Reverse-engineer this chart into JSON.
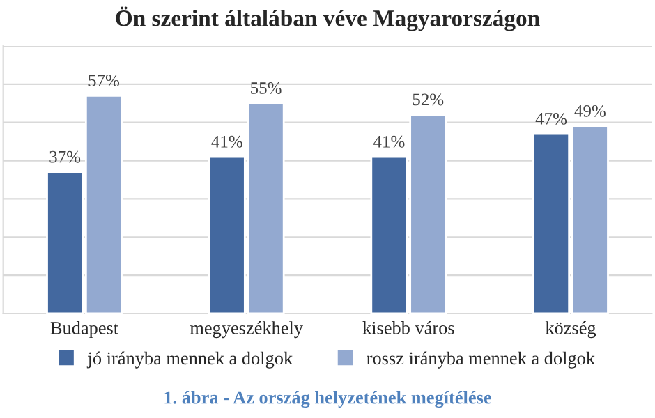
{
  "chart_data": {
    "type": "bar",
    "title": "Ön szerint általában véve Magyarországon",
    "categories": [
      "Budapest",
      "megyeszékhely",
      "kisebb város",
      "község"
    ],
    "series": [
      {
        "name": "jó irányba mennek a dolgok",
        "color": "#43689f",
        "values": [
          37,
          41,
          41,
          47
        ],
        "value_labels": [
          "37%",
          "41%",
          "41%",
          "47%"
        ]
      },
      {
        "name": "rossz irányba mennek a dolgok",
        "color": "#93a9d0",
        "values": [
          57,
          55,
          52,
          49
        ],
        "value_labels": [
          "57%",
          "55%",
          "52%",
          "49%"
        ]
      }
    ],
    "ylim": [
      0,
      70
    ],
    "yticks": [
      {
        "value": 0,
        "label": null
      },
      {
        "value": 10,
        "label": null
      },
      {
        "value": 20,
        "label": null
      },
      {
        "value": 30,
        "label": null
      },
      {
        "value": 40,
        "label": null
      },
      {
        "value": 50,
        "label": null
      },
      {
        "value": 60,
        "label": null
      },
      {
        "value": 70,
        "label": null
      }
    ],
    "tick_labels": "x",
    "grid": "y",
    "legend": "bottom",
    "annotations": [
      "1. ábra - Az ország helyzetének megítélése"
    ]
  }
}
